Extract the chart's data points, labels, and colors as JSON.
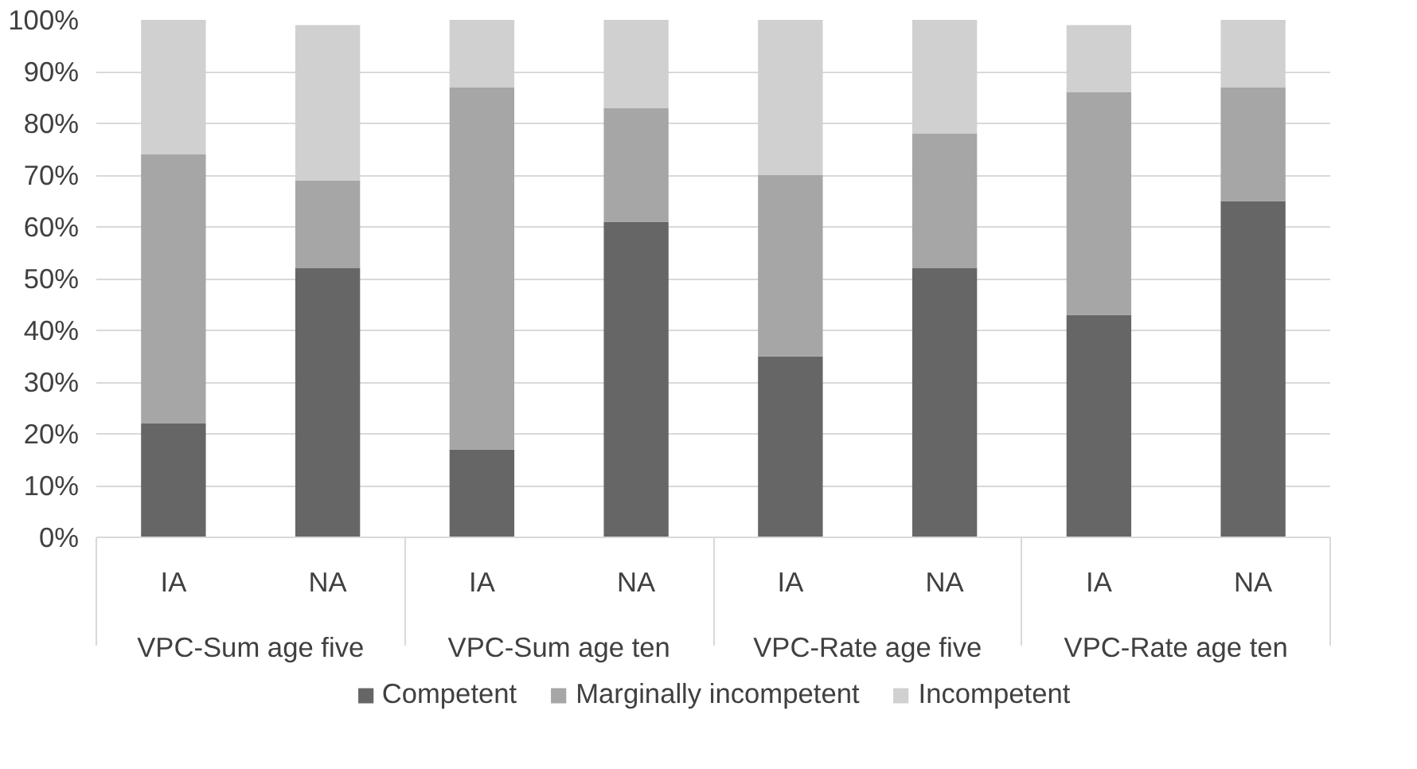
{
  "chart_data": {
    "type": "bar",
    "stacked": true,
    "categories": [
      "IA",
      "NA",
      "IA",
      "NA",
      "IA",
      "NA",
      "IA",
      "NA"
    ],
    "annotations": [
      "VPC-Sum age five",
      "VPC-Sum age ten",
      "VPC-Rate age five",
      "VPC-Rate age ten"
    ],
    "series": [
      {
        "name": "Competent",
        "color": "#666666",
        "values": [
          22,
          52,
          17,
          61,
          35,
          52,
          43,
          65
        ]
      },
      {
        "name": "Marginally incompetent",
        "color": "#a6a6a6",
        "values": [
          52,
          17,
          70,
          22,
          35,
          26,
          43,
          22
        ]
      },
      {
        "name": "Incompetent",
        "color": "#d0d0d0",
        "values": [
          26,
          30,
          13,
          17,
          30,
          22,
          13,
          13
        ]
      }
    ],
    "ylim": [
      0,
      100
    ],
    "yticks": [
      {
        "value": 0,
        "label": "0%"
      },
      {
        "value": 10,
        "label": "10%"
      },
      {
        "value": 20,
        "label": "20%"
      },
      {
        "value": 30,
        "label": "30%"
      },
      {
        "value": 40,
        "label": "40%"
      },
      {
        "value": 50,
        "label": "50%"
      },
      {
        "value": 60,
        "label": "60%"
      },
      {
        "value": 70,
        "label": "70%"
      },
      {
        "value": 80,
        "label": "80%"
      },
      {
        "value": 90,
        "label": "90%"
      },
      {
        "value": 100,
        "label": "100%"
      }
    ],
    "grid": "y",
    "legend": "bottom"
  }
}
